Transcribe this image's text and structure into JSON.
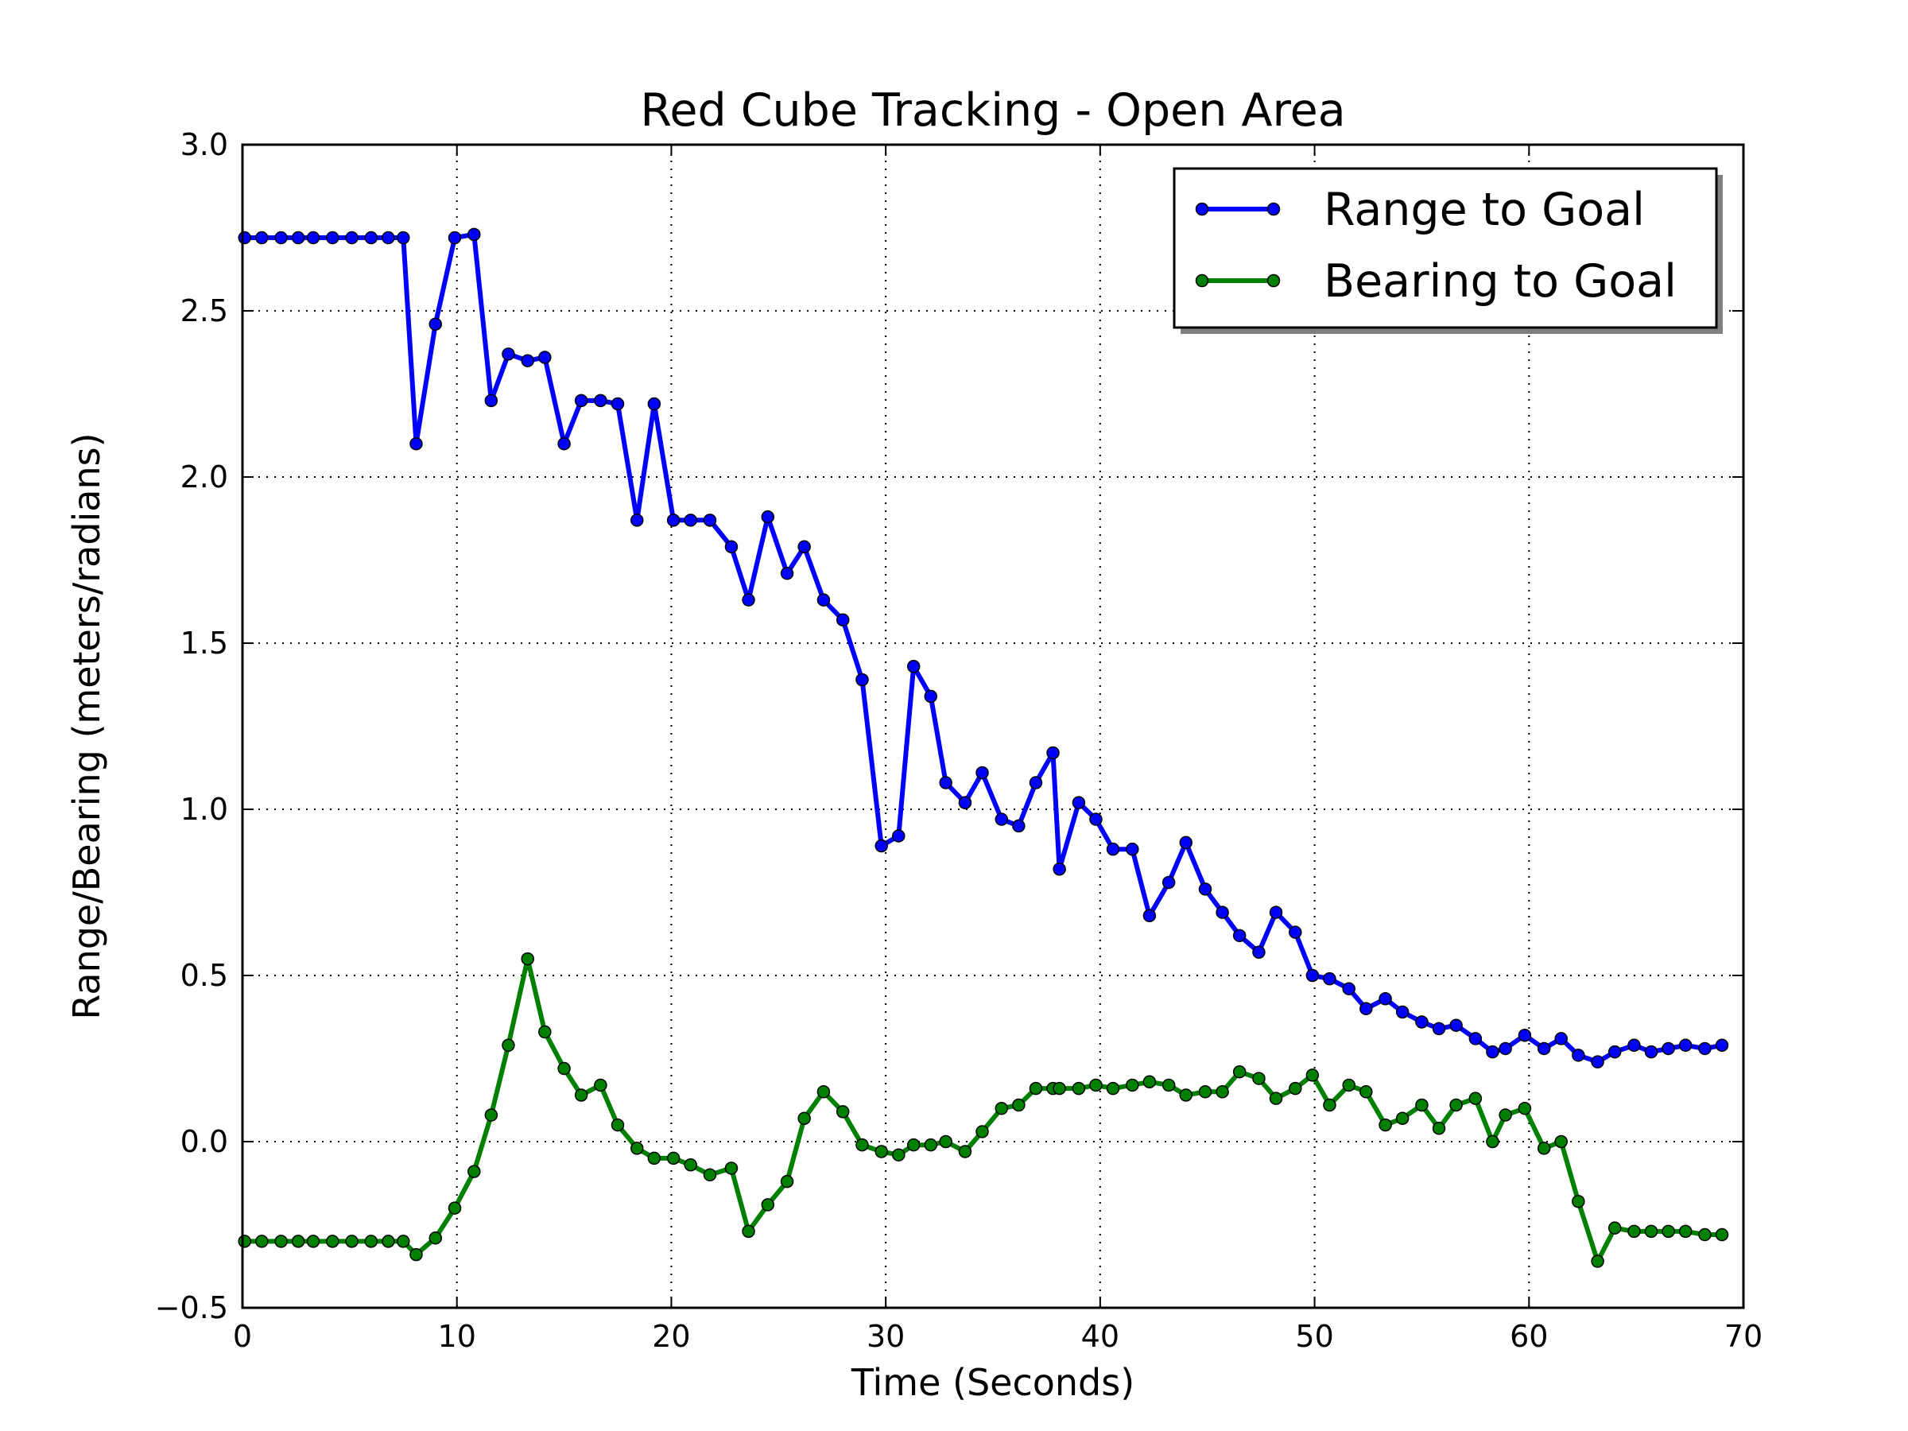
{
  "chart_data": {
    "type": "line",
    "title": "Red Cube Tracking - Open Area",
    "xlabel": "Time (Seconds)",
    "ylabel": "Range/Bearing (meters/radians)",
    "xlim": [
      0,
      70
    ],
    "ylim": [
      -0.5,
      3.0
    ],
    "xticks": [
      0,
      10,
      20,
      30,
      40,
      50,
      60,
      70
    ],
    "xtick_labels": [
      "0",
      "10",
      "20",
      "30",
      "40",
      "50",
      "60",
      "70"
    ],
    "yticks": [
      -0.5,
      0.0,
      0.5,
      1.0,
      1.5,
      2.0,
      2.5,
      3.0
    ],
    "ytick_labels": [
      "−0.5",
      "0.0",
      "0.5",
      "1.0",
      "1.5",
      "2.0",
      "2.5",
      "3.0"
    ],
    "grid": true,
    "legend_position": "top-right",
    "series": [
      {
        "name": "Range to Goal",
        "color": "#0000ff",
        "x": [
          0.1,
          0.9,
          1.8,
          2.6,
          3.3,
          4.2,
          5.1,
          6.0,
          6.8,
          7.5,
          8.1,
          9.0,
          9.9,
          10.8,
          11.6,
          12.4,
          13.3,
          14.1,
          15.0,
          15.8,
          16.7,
          17.5,
          18.4,
          19.2,
          20.1,
          20.9,
          21.8,
          22.8,
          23.6,
          24.5,
          25.4,
          26.2,
          27.1,
          28.0,
          28.9,
          29.8,
          30.6,
          31.3,
          32.1,
          32.8,
          33.7,
          34.5,
          35.4,
          36.2,
          37.0,
          37.8,
          38.1,
          39.0,
          39.8,
          40.6,
          41.5,
          42.3,
          43.2,
          44.0,
          44.9,
          45.7,
          46.5,
          47.4,
          48.2,
          49.1,
          49.9,
          50.7,
          51.6,
          52.4,
          53.3,
          54.1,
          55.0,
          55.8,
          56.6,
          57.5,
          58.3,
          58.9,
          59.8,
          60.7,
          61.5,
          62.3,
          63.2,
          64.0,
          64.9,
          65.7,
          66.5,
          67.3,
          68.2,
          69.0
        ],
        "y": [
          2.72,
          2.72,
          2.72,
          2.72,
          2.72,
          2.72,
          2.72,
          2.72,
          2.72,
          2.72,
          2.1,
          2.46,
          2.72,
          2.73,
          2.23,
          2.37,
          2.35,
          2.36,
          2.1,
          2.23,
          2.23,
          2.22,
          1.87,
          2.22,
          1.87,
          1.87,
          1.87,
          1.79,
          1.63,
          1.88,
          1.71,
          1.79,
          1.63,
          1.57,
          1.39,
          0.89,
          0.92,
          1.43,
          1.34,
          1.08,
          1.02,
          1.11,
          0.97,
          0.95,
          1.08,
          1.17,
          0.82,
          1.02,
          0.97,
          0.88,
          0.88,
          0.68,
          0.78,
          0.9,
          0.76,
          0.69,
          0.62,
          0.57,
          0.69,
          0.63,
          0.5,
          0.49,
          0.46,
          0.4,
          0.43,
          0.39,
          0.36,
          0.34,
          0.35,
          0.31,
          0.27,
          0.28,
          0.32,
          0.28,
          0.31,
          0.26,
          0.24,
          0.27,
          0.29,
          0.27,
          0.28,
          0.29,
          0.28,
          0.29
        ]
      },
      {
        "name": "Bearing to Goal",
        "color": "#008000",
        "x": [
          0.1,
          0.9,
          1.8,
          2.6,
          3.3,
          4.2,
          5.1,
          6.0,
          6.8,
          7.5,
          8.1,
          9.0,
          9.9,
          10.8,
          11.6,
          12.4,
          13.3,
          14.1,
          15.0,
          15.8,
          16.7,
          17.5,
          18.4,
          19.2,
          20.1,
          20.9,
          21.8,
          22.8,
          23.6,
          24.5,
          25.4,
          26.2,
          27.1,
          28.0,
          28.9,
          29.8,
          30.6,
          31.3,
          32.1,
          32.8,
          33.7,
          34.5,
          35.4,
          36.2,
          37.0,
          37.8,
          38.1,
          39.0,
          39.8,
          40.6,
          41.5,
          42.3,
          43.2,
          44.0,
          44.9,
          45.7,
          46.5,
          47.4,
          48.2,
          49.1,
          49.9,
          50.7,
          51.6,
          52.4,
          53.3,
          54.1,
          55.0,
          55.8,
          56.6,
          57.5,
          58.3,
          58.9,
          59.8,
          60.7,
          61.5,
          62.3,
          63.2,
          64.0,
          64.9,
          65.7,
          66.5,
          67.3,
          68.2,
          69.0
        ],
        "y": [
          -0.3,
          -0.3,
          -0.3,
          -0.3,
          -0.3,
          -0.3,
          -0.3,
          -0.3,
          -0.3,
          -0.3,
          -0.34,
          -0.29,
          -0.2,
          -0.09,
          0.08,
          0.29,
          0.55,
          0.33,
          0.22,
          0.14,
          0.17,
          0.05,
          -0.02,
          -0.05,
          -0.05,
          -0.07,
          -0.1,
          -0.08,
          -0.27,
          -0.19,
          -0.12,
          0.07,
          0.15,
          0.09,
          -0.01,
          -0.03,
          -0.04,
          -0.01,
          -0.01,
          0.0,
          -0.03,
          0.03,
          0.1,
          0.11,
          0.16,
          0.16,
          0.16,
          0.16,
          0.17,
          0.16,
          0.17,
          0.18,
          0.17,
          0.14,
          0.15,
          0.15,
          0.21,
          0.19,
          0.13,
          0.16,
          0.2,
          0.11,
          0.17,
          0.15,
          0.05,
          0.07,
          0.11,
          0.04,
          0.11,
          0.13,
          0.0,
          0.08,
          0.1,
          -0.02,
          0.0,
          -0.18,
          -0.36,
          -0.26,
          -0.27,
          -0.27,
          -0.27,
          -0.27,
          -0.28,
          -0.28
        ]
      }
    ]
  }
}
